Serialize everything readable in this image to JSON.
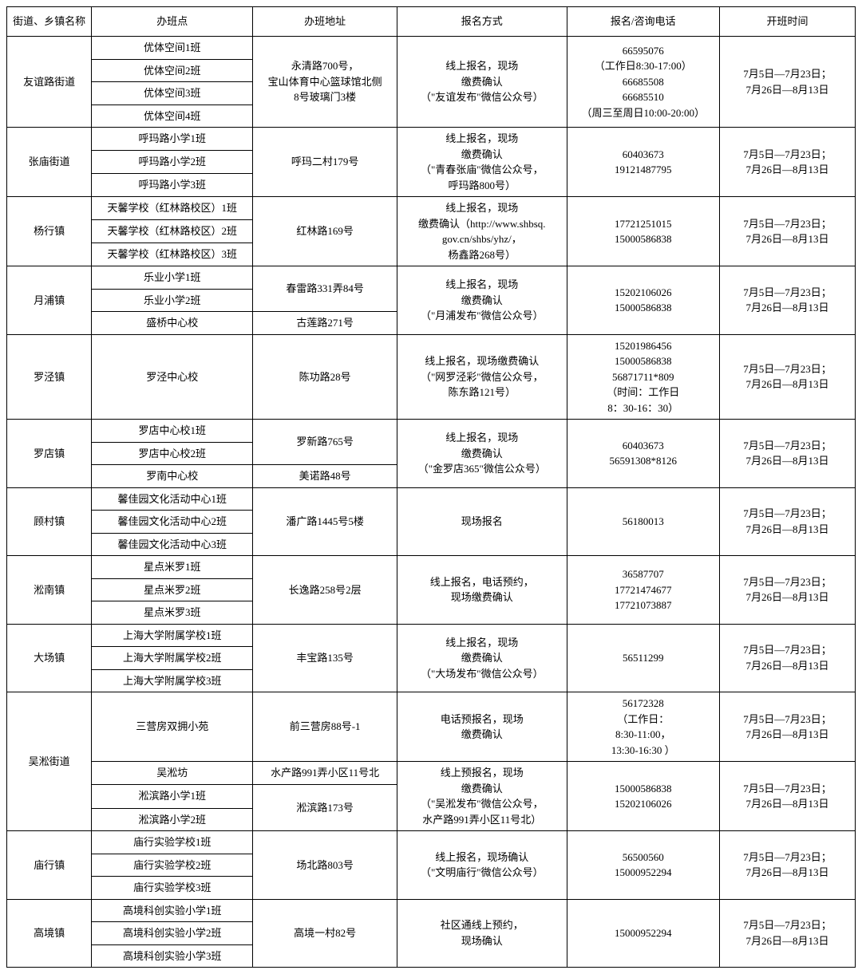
{
  "headers": {
    "district": "街道、乡镇名称",
    "class": "办班点",
    "addr": "办班地址",
    "method": "报名方式",
    "phone": "报名/咨询电话",
    "time": "开班时间"
  },
  "common_time": "7月5日—7月23日；\n7月26日—8月13日",
  "rows": {
    "youyi": {
      "district": "友谊路街道",
      "classes": [
        "优体空间1班",
        "优体空间2班",
        "优体空间3班",
        "优体空间4班"
      ],
      "addr": "永清路700号，\n宝山体育中心篮球馆北侧\n8号玻璃门3楼",
      "method": "线上报名，现场\n缴费确认\n（\"友谊发布\"微信公众号）",
      "phone": "66595076\n（工作日8:30-17:00）\n66685508\n66685510\n（周三至周日10:00-20:00）"
    },
    "zhangmiao": {
      "district": "张庙街道",
      "classes": [
        "呼玛路小学1班",
        "呼玛路小学2班",
        "呼玛路小学3班"
      ],
      "addr": "呼玛二村179号",
      "method": "线上报名，现场\n缴费确认\n（\"青春张庙\"微信公众号，\n呼玛路800号）",
      "phone": "60403673\n19121487795"
    },
    "yanghang": {
      "district": "杨行镇",
      "classes": [
        "天馨学校（红林路校区）1班",
        "天馨学校（红林路校区）2班",
        "天馨学校（红林路校区）3班"
      ],
      "addr": "红林路169号",
      "method": "线上报名，现场\n缴费确认（http://www.shbsq.\ngov.cn/shbs/yhz/，\n杨鑫路268号）",
      "phone": "17721251015\n15000586838"
    },
    "yuepu": {
      "district": "月浦镇",
      "classes": [
        "乐业小学1班",
        "乐业小学2班",
        "盛桥中心校"
      ],
      "addr1": "春雷路331弄84号",
      "addr2": "古莲路271号",
      "method": "线上报名，现场\n缴费确认\n（\"月浦发布\"微信公众号）",
      "phone": "15202106026\n15000586838"
    },
    "luojing": {
      "district": "罗泾镇",
      "class": "罗泾中心校",
      "addr": "陈功路28号",
      "method": "线上报名，现场缴费确认\n（\"网罗泾彩\"微信公众号，\n陈东路121号）",
      "phone": "15201986456\n15000586838\n56871711*809\n（时间：工作日\n8：30-16：30）"
    },
    "luodian": {
      "district": "罗店镇",
      "classes": [
        "罗店中心校1班",
        "罗店中心校2班",
        "罗南中心校"
      ],
      "addr1": "罗新路765号",
      "addr2": "美诺路48号",
      "method": "线上报名，现场\n缴费确认\n（\"金罗店365\"微信公众号）",
      "phone": "60403673\n56591308*8126"
    },
    "gucun": {
      "district": "顾村镇",
      "classes": [
        "馨佳园文化活动中心1班",
        "馨佳园文化活动中心2班",
        "馨佳园文化活动中心3班"
      ],
      "addr": "潘广路1445号5楼",
      "method": "现场报名",
      "phone": "56180013"
    },
    "songnan": {
      "district": "淞南镇",
      "classes": [
        "星点米罗1班",
        "星点米罗2班",
        "星点米罗3班"
      ],
      "addr": "长逸路258号2层",
      "method": "线上报名，电话预约，\n现场缴费确认",
      "phone": "36587707\n17721474677\n17721073887"
    },
    "dachang": {
      "district": "大场镇",
      "classes": [
        "上海大学附属学校1班",
        "上海大学附属学校2班",
        "上海大学附属学校3班"
      ],
      "addr": "丰宝路135号",
      "method": "线上报名，现场\n缴费确认\n（\"大场发布\"微信公众号）",
      "phone": "56511299"
    },
    "wusong": {
      "district": "吴淞街道",
      "classes": [
        "三营房双拥小苑",
        "吴淞坊",
        "淞滨路小学1班",
        "淞滨路小学2班"
      ],
      "addr1": "前三营房88号-1",
      "addr2": "水产路991弄小区11号北",
      "addr3": "淞滨路173号",
      "method1": "电话预报名，现场\n缴费确认",
      "method2": "线上预报名，现场\n缴费确认\n（\"吴淞发布\"微信公众号，\n水产路991弄小区11号北）",
      "phone1": "56172328\n（工作日：\n8:30-11:00，\n13:30-16:30 ）",
      "phone2": "15000586838\n15202106026"
    },
    "miaohang": {
      "district": "庙行镇",
      "classes": [
        "庙行实验学校1班",
        "庙行实验学校2班",
        "庙行实验学校3班"
      ],
      "addr": "场北路803号",
      "method": "线上报名，现场确认\n（\"文明庙行\"微信公众号）",
      "phone": "56500560\n15000952294"
    },
    "gaojing": {
      "district": "高境镇",
      "classes": [
        "高境科创实验小学1班",
        "高境科创实验小学2班",
        "高境科创实验小学3班"
      ],
      "addr": "高境一村82号",
      "method": "社区通线上预约，\n现场确认",
      "phone": "15000952294"
    }
  }
}
